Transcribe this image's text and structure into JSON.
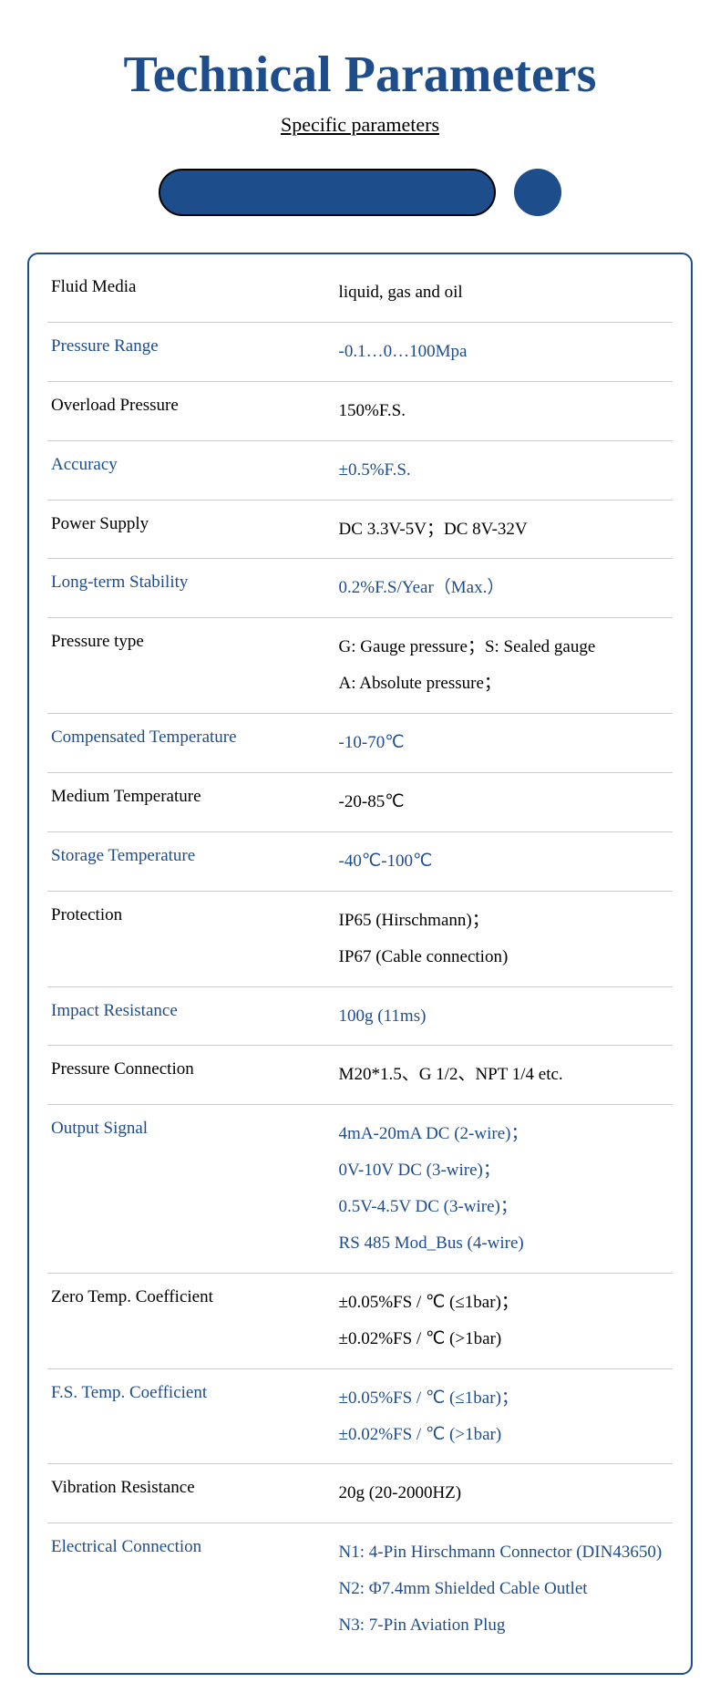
{
  "title": "Technical Parameters",
  "subtitle": "Specific parameters",
  "colors": {
    "primary": "#1e4d8c",
    "text_black": "#000000",
    "border": "#cccccc",
    "background": "#ffffff"
  },
  "typography": {
    "title_fontsize": 56,
    "subtitle_fontsize": 22,
    "row_fontsize": 19,
    "font_family": "Georgia, Times New Roman, serif"
  },
  "decorator": {
    "pill_width": 370,
    "pill_height": 52,
    "circle_diameter": 52,
    "fill_color": "#1e4d8c",
    "pill_border": "#000000"
  },
  "rows": [
    {
      "label": "Fluid Media",
      "value": "liquid, gas and oil",
      "color": "black"
    },
    {
      "label": "Pressure Range",
      "value": "-0.1…0…100Mpa",
      "color": "blue"
    },
    {
      "label": "Overload Pressure",
      "value": "150%F.S.",
      "color": "black"
    },
    {
      "label": "Accuracy",
      "value": "±0.5%F.S.",
      "color": "blue"
    },
    {
      "label": "Power Supply",
      "value": "DC 3.3V-5V；DC 8V-32V",
      "color": "black"
    },
    {
      "label": "Long-term Stability",
      "value": "0.2%F.S/Year（Max.）",
      "color": "blue"
    },
    {
      "label": "Pressure type",
      "value": "G: Gauge pressure；S: Sealed gauge\nA: Absolute pressure；",
      "color": "black"
    },
    {
      "label": "Compensated Temperature",
      "value": "-10-70℃",
      "color": "blue"
    },
    {
      "label": "Medium Temperature",
      "value": "-20-85℃",
      "color": "black"
    },
    {
      "label": "Storage Temperature",
      "value": "-40℃-100℃",
      "color": "blue"
    },
    {
      "label": "Protection",
      "value": "IP65 (Hirschmann)；\nIP67 (Cable connection)",
      "color": "black"
    },
    {
      "label": "Impact Resistance",
      "value": "100g (11ms)",
      "color": "blue"
    },
    {
      "label": "Pressure Connection",
      "value": "M20*1.5、G 1/2、NPT 1/4 etc.",
      "color": "black"
    },
    {
      "label": "Output Signal",
      "value": "4mA-20mA DC (2-wire)；\n0V-10V DC (3-wire)；\n0.5V-4.5V DC (3-wire)；\nRS 485 Mod_Bus (4-wire)",
      "color": "blue"
    },
    {
      "label": "Zero Temp. Coefficient",
      "value": "±0.05%FS / ℃ (≤1bar)；\n±0.02%FS / ℃ (>1bar)",
      "color": "black"
    },
    {
      "label": "F.S. Temp. Coefficient",
      "value": "±0.05%FS / ℃ (≤1bar)；\n±0.02%FS / ℃ (>1bar)",
      "color": "blue"
    },
    {
      "label": "Vibration Resistance",
      "value": "20g (20-2000HZ)",
      "color": "black"
    },
    {
      "label": "Electrical Connection",
      "value": "N1: 4-Pin Hirschmann Connector (DIN43650)\nN2: Φ7.4mm Shielded Cable Outlet\nN3: 7-Pin Aviation Plug",
      "color": "blue"
    }
  ]
}
